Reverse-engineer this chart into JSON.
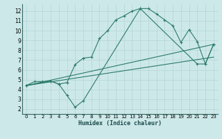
{
  "xlabel": "Humidex (Indice chaleur)",
  "bg_color": "#cde8e8",
  "grid_color": "#b8d8d8",
  "line_color": "#2a7a6a",
  "xlim": [
    -0.5,
    23.5
  ],
  "ylim": [
    1.5,
    12.7
  ],
  "xticks": [
    0,
    1,
    2,
    3,
    4,
    5,
    6,
    7,
    8,
    9,
    10,
    11,
    12,
    13,
    14,
    15,
    16,
    17,
    18,
    19,
    20,
    21,
    22,
    23
  ],
  "yticks": [
    2,
    3,
    4,
    5,
    6,
    7,
    8,
    9,
    10,
    11,
    12
  ],
  "curve1_x": [
    0,
    1,
    2,
    3,
    4,
    5,
    6,
    7,
    8,
    9,
    10,
    11,
    12,
    13,
    14,
    15,
    16,
    17,
    18,
    19,
    20,
    21,
    22,
    23
  ],
  "curve1_y": [
    4.4,
    4.8,
    4.8,
    4.85,
    4.55,
    4.7,
    6.55,
    7.2,
    7.3,
    9.2,
    10.0,
    11.1,
    11.5,
    12.0,
    12.25,
    12.25,
    11.7,
    11.1,
    10.5,
    8.8,
    10.1,
    8.9,
    6.6,
    8.6
  ],
  "curve2_x": [
    0,
    3,
    4,
    5,
    6,
    7,
    14,
    21,
    22,
    23
  ],
  "curve2_y": [
    4.4,
    4.85,
    4.55,
    3.4,
    2.2,
    2.85,
    12.25,
    6.6,
    6.6,
    8.6
  ],
  "line1_x": [
    0,
    23
  ],
  "line1_y": [
    4.4,
    8.6
  ],
  "line2_x": [
    0,
    23
  ],
  "line2_y": [
    4.4,
    7.3
  ]
}
